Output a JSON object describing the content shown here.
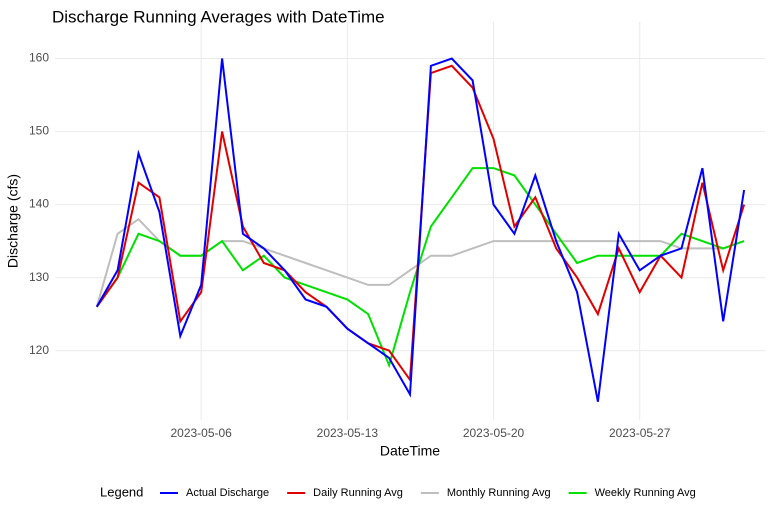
{
  "chart_data": {
    "type": "line",
    "title": "Discharge Running Averages with DateTime",
    "x_label": "DateTime",
    "y_label": "Discharge (cfs)",
    "legend_title": "Legend",
    "legend_position": "bottom",
    "grid": true,
    "x": [
      "2023-05-01",
      "2023-05-02",
      "2023-05-03",
      "2023-05-04",
      "2023-05-05",
      "2023-05-06",
      "2023-05-07",
      "2023-05-08",
      "2023-05-09",
      "2023-05-10",
      "2023-05-11",
      "2023-05-12",
      "2023-05-13",
      "2023-05-14",
      "2023-05-15",
      "2023-05-16",
      "2023-05-17",
      "2023-05-18",
      "2023-05-19",
      "2023-05-20",
      "2023-05-21",
      "2023-05-22",
      "2023-05-23",
      "2023-05-24",
      "2023-05-25",
      "2023-05-26",
      "2023-05-27",
      "2023-05-28",
      "2023-05-29",
      "2023-05-30",
      "2023-05-31",
      "2023-06-01"
    ],
    "xlim": [
      "2023-04-29",
      "2023-06-02"
    ],
    "xticks": [
      "2023-05-06",
      "2023-05-13",
      "2023-05-20",
      "2023-05-27"
    ],
    "ylim": [
      110.5,
      165
    ],
    "yticks": [
      120,
      130,
      140,
      150,
      160
    ],
    "series": [
      {
        "name": "Actual Discharge",
        "color": "#0000ff",
        "values": [
          126,
          131,
          147,
          139,
          122,
          129,
          160,
          136,
          134,
          131,
          127,
          126,
          123,
          121,
          119,
          114,
          159,
          160,
          157,
          140,
          136,
          144,
          135,
          128,
          113,
          136,
          131,
          133,
          134,
          145,
          124,
          142
        ]
      },
      {
        "name": "Daily Running Avg",
        "color": "#e00000",
        "values": [
          126,
          130,
          143,
          141,
          124,
          128,
          150,
          137,
          132,
          131,
          128,
          126,
          123,
          121,
          120,
          116,
          158,
          159,
          156,
          149,
          137,
          141,
          134,
          130,
          125,
          134,
          128,
          133,
          130,
          143,
          131,
          140
        ]
      },
      {
        "name": "Monthly Running Avg",
        "color": "#bebebe",
        "values": [
          126,
          136,
          138,
          135,
          133,
          133,
          135,
          135,
          134,
          133,
          132,
          131,
          130,
          129,
          129,
          131,
          133,
          133,
          134,
          135,
          135,
          135,
          135,
          135,
          135,
          135,
          135,
          135,
          134,
          134,
          134,
          135
        ]
      },
      {
        "name": "Weekly Running Avg",
        "color": "#00e000",
        "values": [
          126,
          130,
          136,
          135,
          133,
          133,
          135,
          131,
          133,
          130,
          129,
          128,
          127,
          125,
          118,
          128,
          137,
          141,
          145,
          145,
          144,
          140,
          136,
          132,
          133,
          133,
          133,
          133,
          136,
          135,
          134,
          135
        ]
      }
    ]
  }
}
